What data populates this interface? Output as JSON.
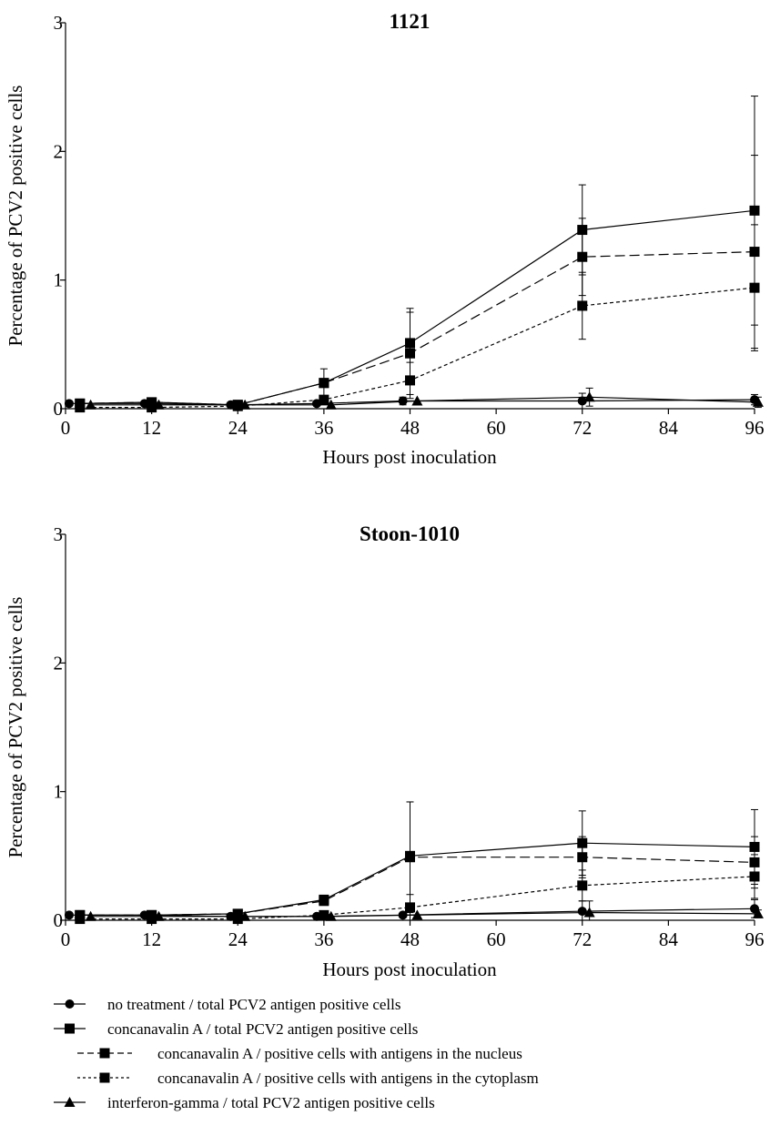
{
  "chart_data": [
    {
      "type": "line",
      "title": "1121",
      "xlabel": "Hours post inoculation",
      "ylabel": "Percentage of PCV2 positive cells",
      "xlim": [
        0,
        96
      ],
      "ylim": [
        0,
        3
      ],
      "xticks": [
        0,
        12,
        24,
        36,
        48,
        60,
        72,
        84,
        96
      ],
      "yticks": [
        0,
        1,
        2,
        3
      ],
      "grid": false,
      "series": [
        {
          "key": "nt",
          "points": [
            [
              0.5,
              0.04
            ],
            [
              11,
              0.04
            ],
            [
              23,
              0.03
            ],
            [
              35,
              0.04
            ],
            [
              47,
              0.06
            ],
            [
              72,
              0.06
            ],
            [
              96,
              0.07
            ]
          ],
          "err": [
            0,
            0,
            0,
            0,
            0.03,
            0.06,
            0.04
          ]
        },
        {
          "key": "cona_total",
          "points": [
            [
              2,
              0.04
            ],
            [
              12,
              0.05
            ],
            [
              24,
              0.03
            ],
            [
              36,
              0.2
            ],
            [
              48,
              0.51
            ],
            [
              72,
              1.39
            ],
            [
              96,
              1.54
            ]
          ],
          "err": [
            0,
            0,
            0,
            0.11,
            0.27,
            0.35,
            0.89
          ]
        },
        {
          "key": "cona_nucleus",
          "points": [
            [
              2,
              0.04
            ],
            [
              12,
              0.05
            ],
            [
              24,
              0.03
            ],
            [
              36,
              0.2
            ],
            [
              48,
              0.43
            ],
            [
              72,
              1.18
            ],
            [
              96,
              1.22
            ]
          ],
          "err": [
            0,
            0,
            0,
            0,
            0.32,
            0.3,
            0.75
          ]
        },
        {
          "key": "cona_cyto",
          "points": [
            [
              2,
              0.01
            ],
            [
              12,
              0.01
            ],
            [
              24,
              0.02
            ],
            [
              36,
              0.07
            ],
            [
              48,
              0.22
            ],
            [
              72,
              0.8
            ],
            [
              96,
              0.94
            ]
          ],
          "err": [
            0,
            0,
            0,
            0,
            0.14,
            0.26,
            0.49
          ]
        },
        {
          "key": "ifn",
          "points": [
            [
              3.5,
              0.03
            ],
            [
              13,
              0.03
            ],
            [
              25,
              0.03
            ],
            [
              37,
              0.03
            ],
            [
              49,
              0.06
            ],
            [
              73,
              0.09
            ],
            [
              96.5,
              0.05
            ]
          ],
          "err": [
            0,
            0,
            0,
            0,
            0,
            0.07,
            0.04
          ]
        }
      ]
    },
    {
      "type": "line",
      "title": "Stoon-1010",
      "xlabel": "Hours post inoculation",
      "ylabel": "Percentage of PCV2 positive cells",
      "xlim": [
        0,
        96
      ],
      "ylim": [
        0,
        3
      ],
      "xticks": [
        0,
        12,
        24,
        36,
        48,
        60,
        72,
        84,
        96
      ],
      "yticks": [
        0,
        1,
        2,
        3
      ],
      "grid": false,
      "series": [
        {
          "key": "nt",
          "points": [
            [
              0.5,
              0.04
            ],
            [
              11,
              0.04
            ],
            [
              23,
              0.03
            ],
            [
              35,
              0.03
            ],
            [
              47,
              0.04
            ],
            [
              72,
              0.07
            ],
            [
              96,
              0.09
            ]
          ],
          "err": [
            0,
            0,
            0,
            0,
            0,
            0.08,
            0.07
          ]
        },
        {
          "key": "cona_total",
          "points": [
            [
              2,
              0.04
            ],
            [
              12,
              0.04
            ],
            [
              24,
              0.05
            ],
            [
              36,
              0.16
            ],
            [
              48,
              0.5
            ],
            [
              72,
              0.6
            ],
            [
              96,
              0.57
            ]
          ],
          "err": [
            0,
            0,
            0,
            0.03,
            0.42,
            0.25,
            0.29
          ]
        },
        {
          "key": "cona_nucleus",
          "points": [
            [
              2,
              0.04
            ],
            [
              12,
              0.04
            ],
            [
              24,
              0.05
            ],
            [
              36,
              0.15
            ],
            [
              48,
              0.49
            ],
            [
              72,
              0.49
            ],
            [
              96,
              0.45
            ]
          ],
          "err": [
            0,
            0,
            0,
            0.03,
            0.43,
            0.16,
            0.2
          ]
        },
        {
          "key": "cona_cyto",
          "points": [
            [
              2,
              0.01
            ],
            [
              12,
              0.01
            ],
            [
              24,
              0.01
            ],
            [
              36,
              0.04
            ],
            [
              48,
              0.1
            ],
            [
              72,
              0.27
            ],
            [
              96,
              0.34
            ]
          ],
          "err": [
            0,
            0,
            0,
            0,
            0.1,
            0.12,
            0.17
          ]
        },
        {
          "key": "ifn",
          "points": [
            [
              3.5,
              0.03
            ],
            [
              13,
              0.03
            ],
            [
              25,
              0.03
            ],
            [
              37,
              0.03
            ],
            [
              49,
              0.04
            ],
            [
              73,
              0.06
            ],
            [
              96.5,
              0.05
            ]
          ],
          "err": [
            0,
            0,
            0,
            0,
            0,
            0.09,
            0.03
          ]
        }
      ]
    }
  ],
  "legend": {
    "placement": "bottom",
    "items": [
      {
        "key": "nt",
        "label": "no treatment / total PCV2 antigen positive cells",
        "marker": "circle",
        "line": "solid",
        "indent": false
      },
      {
        "key": "cona_total",
        "label": "concanavalin A / total PCV2 antigen positive cells",
        "marker": "square",
        "line": "solid",
        "indent": false
      },
      {
        "key": "cona_nucleus",
        "label": "concanavalin A / positive cells with antigens in the nucleus",
        "marker": "square",
        "line": "dashed",
        "indent": true
      },
      {
        "key": "cona_cyto",
        "label": "concanavalin A / positive cells with antigens in the cytoplasm",
        "marker": "square",
        "line": "dotted",
        "indent": true
      },
      {
        "key": "ifn",
        "label": "interferon-gamma / total PCV2 antigen positive cells",
        "marker": "triangle",
        "line": "solid",
        "indent": false
      }
    ]
  },
  "style": {
    "ink": "#000000",
    "background": "#ffffff"
  }
}
